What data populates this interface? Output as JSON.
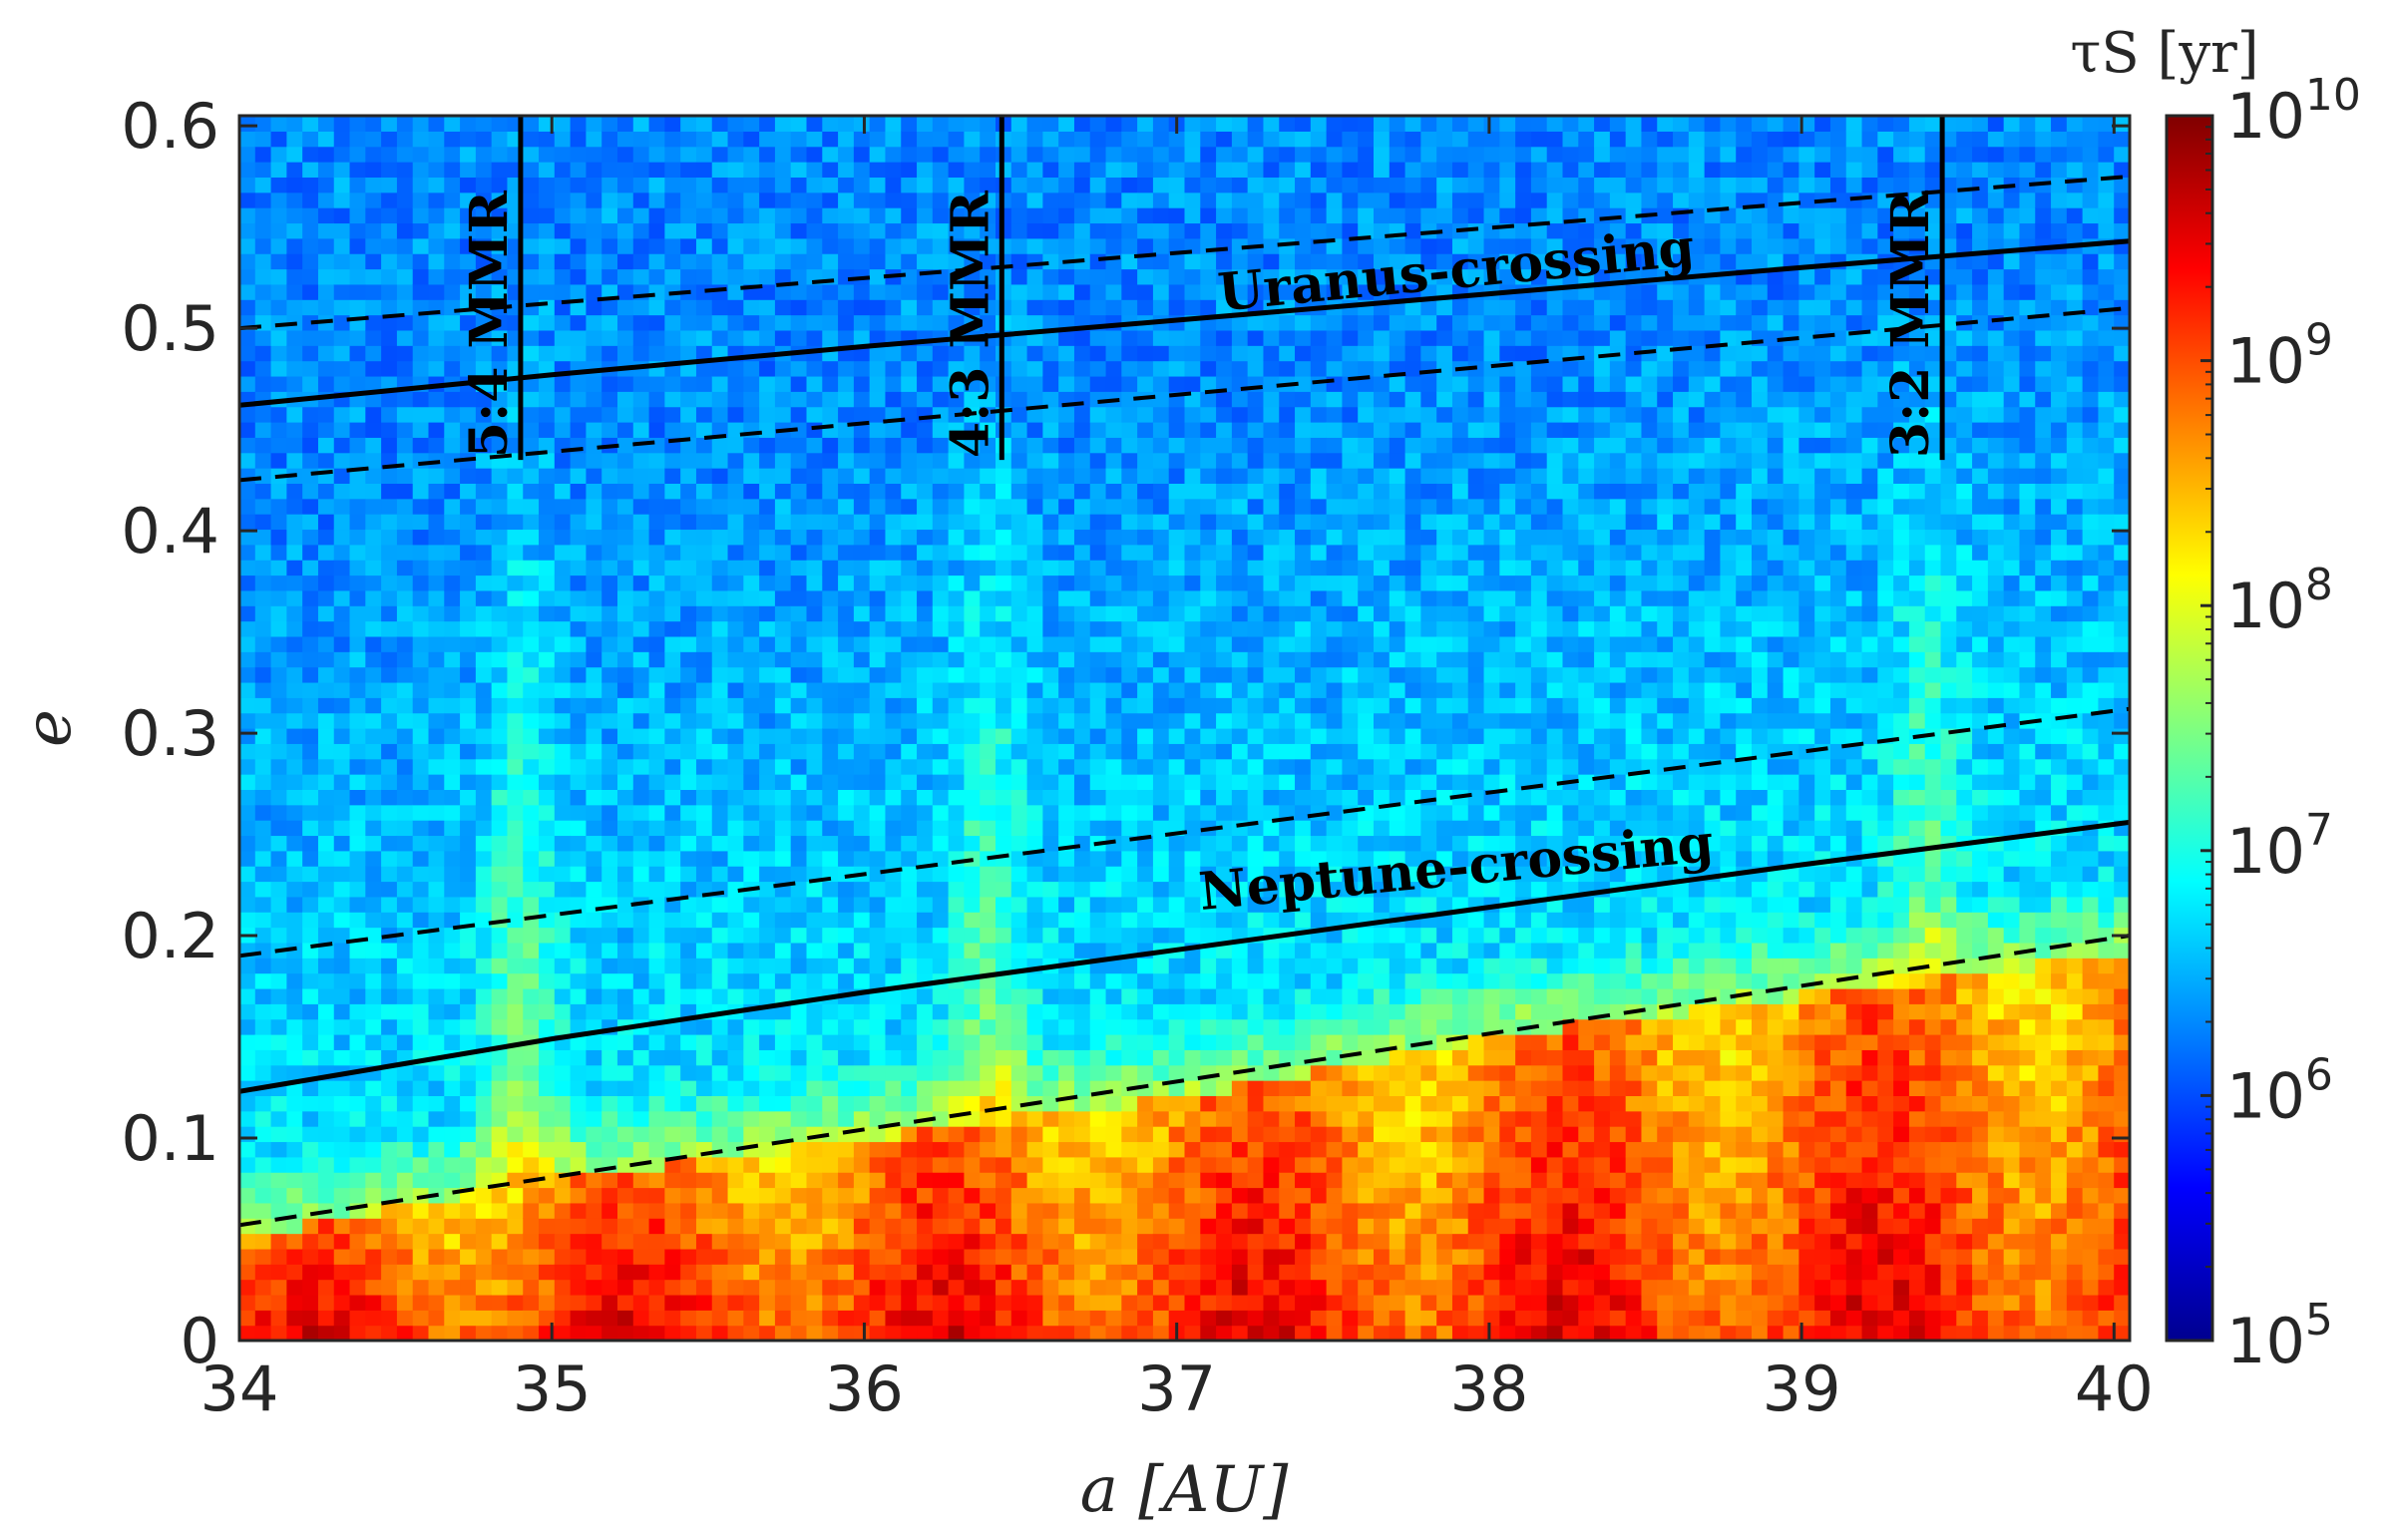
{
  "chart_data": {
    "type": "heatmap",
    "title": "",
    "xlabel": "a [AU]",
    "ylabel": "e",
    "xlim": [
      34,
      40.05
    ],
    "ylim": [
      0,
      0.605
    ],
    "xticks": [
      34,
      35,
      36,
      37,
      38,
      39,
      40
    ],
    "yticks": [
      0,
      0.1,
      0.2,
      0.3,
      0.4,
      0.5,
      0.6
    ],
    "xtick_labels": [
      "34",
      "35",
      "36",
      "37",
      "38",
      "39",
      "40"
    ],
    "ytick_labels": [
      "0",
      "0.1",
      "0.2",
      "0.3",
      "0.4",
      "0.5",
      "0.6"
    ],
    "colorbar": {
      "label": "τS [yr]",
      "scale": "log",
      "range": [
        100000,
        10000000000
      ],
      "colormap": "jet",
      "tick_labels": [
        "10^5",
        "10^6",
        "10^7",
        "10^8",
        "10^9",
        "10^10"
      ],
      "tick_values": [
        100000,
        1000000,
        10000000,
        100000000,
        1000000000,
        10000000000
      ]
    },
    "heatmap_description": {
      "low_e_region_log_tau": 9.2,
      "mid_region_log_tau": 6.8,
      "high_e_region_log_tau": 6.3,
      "transition_curve_e": [
        [
          34,
          0.05
        ],
        [
          35,
          0.08
        ],
        [
          36,
          0.1
        ],
        [
          37,
          0.12
        ],
        [
          38,
          0.15
        ],
        [
          39,
          0.17
        ],
        [
          40,
          0.19
        ]
      ],
      "resonance_bands_a": [
        34.9,
        36.4,
        39.4
      ]
    },
    "curves": [
      {
        "name": "Uranus-crossing",
        "style": "solid",
        "x": [
          34,
          35,
          36,
          37,
          38,
          39,
          40.05
        ],
        "y": [
          0.462,
          0.477,
          0.491,
          0.504,
          0.517,
          0.53,
          0.543
        ]
      },
      {
        "name": "Uranus-crossing-upper",
        "style": "dashed",
        "x": [
          34,
          40.05
        ],
        "y": [
          0.5,
          0.575
        ]
      },
      {
        "name": "Uranus-crossing-lower",
        "style": "dashed",
        "x": [
          34,
          40.05
        ],
        "y": [
          0.425,
          0.51
        ]
      },
      {
        "name": "Neptune-crossing",
        "style": "solid",
        "x": [
          34,
          35,
          36,
          37,
          38,
          39,
          40.05
        ],
        "y": [
          0.123,
          0.149,
          0.172,
          0.193,
          0.214,
          0.235,
          0.256
        ]
      },
      {
        "name": "Neptune-crossing-upper",
        "style": "dashed",
        "x": [
          34,
          40.05
        ],
        "y": [
          0.19,
          0.312
        ]
      },
      {
        "name": "Neptune-crossing-lower",
        "style": "dashed",
        "x": [
          34,
          40.05
        ],
        "y": [
          0.057,
          0.2
        ]
      }
    ],
    "resonances": [
      {
        "label": "5:4 MMR",
        "a": 34.9,
        "e_min": 0.435,
        "e_max": 0.605
      },
      {
        "label": "4:3 MMR",
        "a": 36.44,
        "e_min": 0.435,
        "e_max": 0.605
      },
      {
        "label": "3:2 MMR",
        "a": 39.45,
        "e_min": 0.435,
        "e_max": 0.605
      }
    ],
    "annotations": [
      {
        "text": "Uranus-crossing",
        "a": 37.9,
        "e": 0.52
      },
      {
        "text": "Neptune-crossing",
        "a": 37.9,
        "e": 0.225
      }
    ]
  }
}
